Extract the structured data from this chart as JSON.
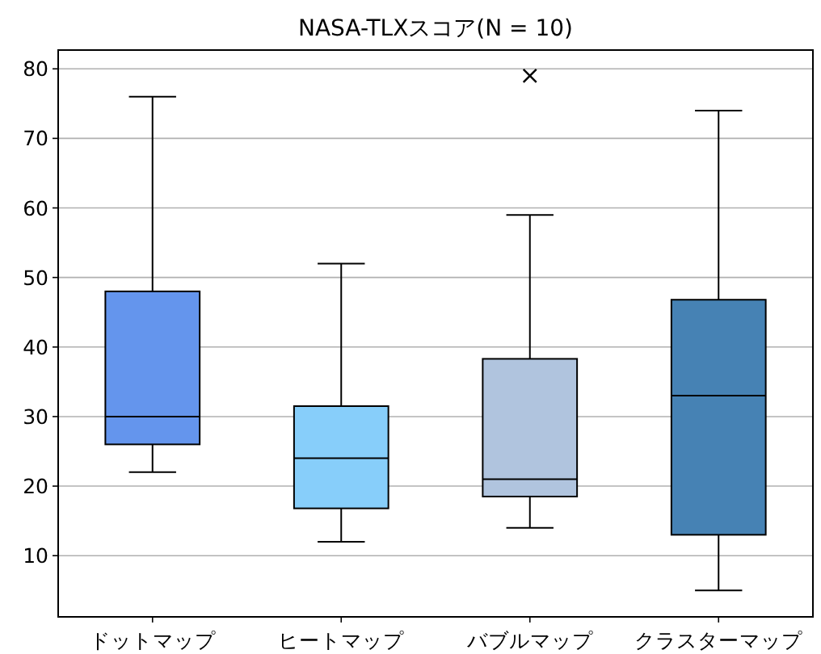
{
  "chart_data": {
    "type": "box",
    "title": "NASA-TLXスコア(N = 10)",
    "categories": [
      "ドットマップ",
      "ヒートマップ",
      "バブルマップ",
      "クラスターマップ"
    ],
    "boxes": [
      {
        "low": 22,
        "q1": 26,
        "median": 30,
        "q3": 48,
        "high": 76
      },
      {
        "low": 12,
        "q1": 16.8,
        "median": 24,
        "q3": 31.5,
        "high": 52
      },
      {
        "low": 14,
        "q1": 18.5,
        "median": 21,
        "q3": 38.3,
        "high": 59,
        "outliers": [
          79
        ]
      },
      {
        "low": 5,
        "q1": 13,
        "median": 33,
        "q3": 46.8,
        "high": 74
      }
    ],
    "colors": [
      "#6495ed",
      "#87cefa",
      "#b0c4de",
      "#4682b4"
    ],
    "ylim": [
      1.2,
      82.7
    ],
    "yticks": [
      10,
      20,
      30,
      40,
      50,
      60,
      70,
      80
    ],
    "grid": "y",
    "marker": "cross"
  }
}
